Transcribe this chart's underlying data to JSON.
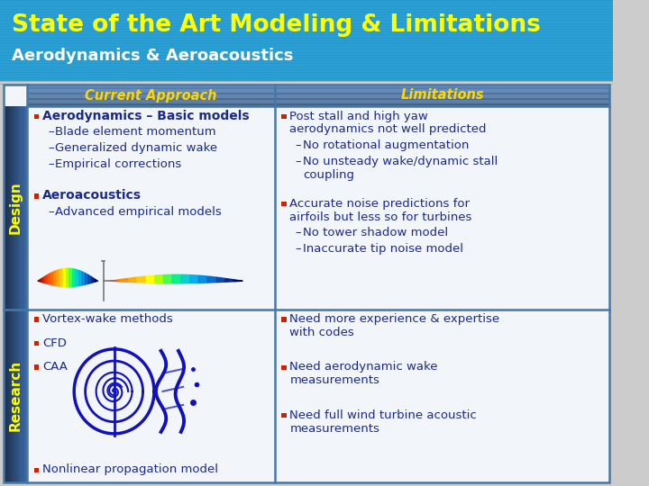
{
  "title": "State of the Art Modeling & Limitations",
  "subtitle": "Aerodynamics & Aeroacoustics",
  "header_bg": "#2B9FD4",
  "title_color": "#FFFF00",
  "subtitle_color": "#FFFFFF",
  "table_bg": "#EEF2F8",
  "header_row_bg_left": "#7EB0E0",
  "header_row_bg_right": "#7EB0E0",
  "col_header_color": "#FFD700",
  "body_text_color": "#1A2A8C",
  "bullet_color": "#CC2200",
  "side_label_color": "#FFFF00",
  "side_label_bg": "#5599CC",
  "border_color": "#4477AA",
  "col1_header": "Current Approach",
  "col2_header": "Limitations",
  "design_label": "Design",
  "research_label": "Research",
  "design_col1": [
    {
      "type": "bullet",
      "text": "Aerodynamics – Basic models",
      "indent": 0,
      "bold": true
    },
    {
      "type": "dash",
      "text": "Blade element momentum",
      "indent": 1,
      "bold": false
    },
    {
      "type": "dash",
      "text": "Generalized dynamic wake",
      "indent": 1,
      "bold": false
    },
    {
      "type": "dash",
      "text": "Empirical corrections",
      "indent": 1,
      "bold": false
    },
    {
      "type": "spacer",
      "size": 1.0
    },
    {
      "type": "bullet",
      "text": "Aeroacoustics",
      "indent": 0,
      "bold": true
    },
    {
      "type": "dash",
      "text": "Advanced empirical models",
      "indent": 1,
      "bold": false
    }
  ],
  "design_col2": [
    {
      "type": "bullet",
      "text": "Post stall and high yaw\naerodynamics not well predicted",
      "indent": 0,
      "bold": false
    },
    {
      "type": "dash",
      "text": "No rotational augmentation",
      "indent": 1,
      "bold": false
    },
    {
      "type": "dash",
      "text": "No unsteady wake/dynamic stall\ncoupling",
      "indent": 1,
      "bold": false
    },
    {
      "type": "spacer",
      "size": 0.8
    },
    {
      "type": "bullet",
      "text": "Accurate noise predictions for\nairfoils but less so for turbines",
      "indent": 0,
      "bold": false
    },
    {
      "type": "dash",
      "text": "No tower shadow model",
      "indent": 1,
      "bold": false
    },
    {
      "type": "dash",
      "text": "Inaccurate tip noise model",
      "indent": 1,
      "bold": false
    }
  ],
  "research_col1": [
    {
      "type": "bullet",
      "text": "Vortex-wake methods",
      "indent": 0,
      "bold": false
    },
    {
      "type": "spacer",
      "size": 0.5
    },
    {
      "type": "bullet",
      "text": "CFD",
      "indent": 0,
      "bold": false
    },
    {
      "type": "spacer",
      "size": 0.5
    },
    {
      "type": "bullet",
      "text": "CAA",
      "indent": 0,
      "bold": false
    }
  ],
  "research_col1_bottom": [
    {
      "type": "bullet",
      "text": "Nonlinear propagation model",
      "indent": 0,
      "bold": false
    }
  ],
  "research_col2": [
    {
      "type": "bullet",
      "text": "Need more experience & expertise\nwith codes",
      "indent": 0,
      "bold": false
    },
    {
      "type": "spacer",
      "size": 1.2
    },
    {
      "type": "bullet",
      "text": "Need aerodynamic wake\nmeasurements",
      "indent": 0,
      "bold": false
    },
    {
      "type": "spacer",
      "size": 1.2
    },
    {
      "type": "bullet",
      "text": "Need full wind turbine acoustic\nmeasurements",
      "indent": 0,
      "bold": false
    }
  ],
  "airfoil_colors": [
    "#8B0000",
    "#BB1100",
    "#DD3300",
    "#FF4500",
    "#FF6600",
    "#FF8800",
    "#FFAA00",
    "#FFCC00",
    "#FFFF00",
    "#AAFF00",
    "#44FF44",
    "#00EE88",
    "#00CCCC",
    "#00AAEE",
    "#0088DD",
    "#0066CC",
    "#0044AA",
    "#002288",
    "#000066"
  ]
}
